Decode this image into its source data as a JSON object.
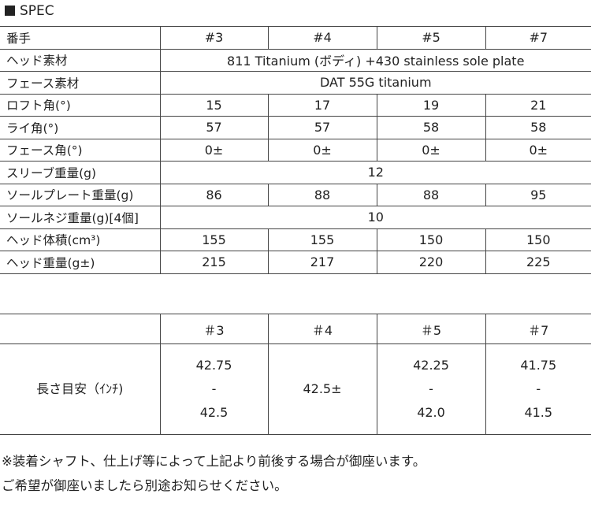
{
  "title": "SPEC",
  "spec_table": {
    "header": [
      "番手",
      "#3",
      "#4",
      "#5",
      "#7"
    ],
    "rows": [
      {
        "label": "ヘッド素材",
        "merged": "811 Titanium (ボディ) +430 stainless sole plate"
      },
      {
        "label": "フェース素材",
        "merged": "DAT 55G titanium"
      },
      {
        "label": "ロフト角(°)",
        "values": [
          "15",
          "17",
          "19",
          "21"
        ]
      },
      {
        "label": "ライ角(°)",
        "values": [
          "57",
          "57",
          "58",
          "58"
        ]
      },
      {
        "label": "フェース角(°)",
        "values": [
          "0±",
          "0±",
          "0±",
          "0±"
        ]
      },
      {
        "label": "スリーブ重量(g)",
        "merged": "12"
      },
      {
        "label": "ソールプレート重量(g)",
        "values": [
          "86",
          "88",
          "88",
          "95"
        ]
      },
      {
        "label": "ソールネジ重量(g)[4個]",
        "merged": "10"
      },
      {
        "label": "ヘッド体積(cm³)",
        "values": [
          "155",
          "155",
          "150",
          "150"
        ]
      },
      {
        "label": "ヘッド重量(g±)",
        "values": [
          "215",
          "217",
          "220",
          "225"
        ]
      }
    ]
  },
  "length_table": {
    "header": [
      "",
      "＃3",
      "＃4",
      "＃5",
      "＃7"
    ],
    "label": "長さ目安（ｲﾝﾁ)",
    "values": [
      [
        "42.75",
        "-",
        "42.5"
      ],
      [
        "42.5±"
      ],
      [
        "42.25",
        "-",
        "42.0"
      ],
      [
        "41.75",
        "-",
        "41.5"
      ]
    ]
  },
  "notes": [
    "※装着シャフト、仕上げ等によって上記より前後する場合が御座います。",
    "ご希望が御座いましたら別途お知らせください。"
  ]
}
